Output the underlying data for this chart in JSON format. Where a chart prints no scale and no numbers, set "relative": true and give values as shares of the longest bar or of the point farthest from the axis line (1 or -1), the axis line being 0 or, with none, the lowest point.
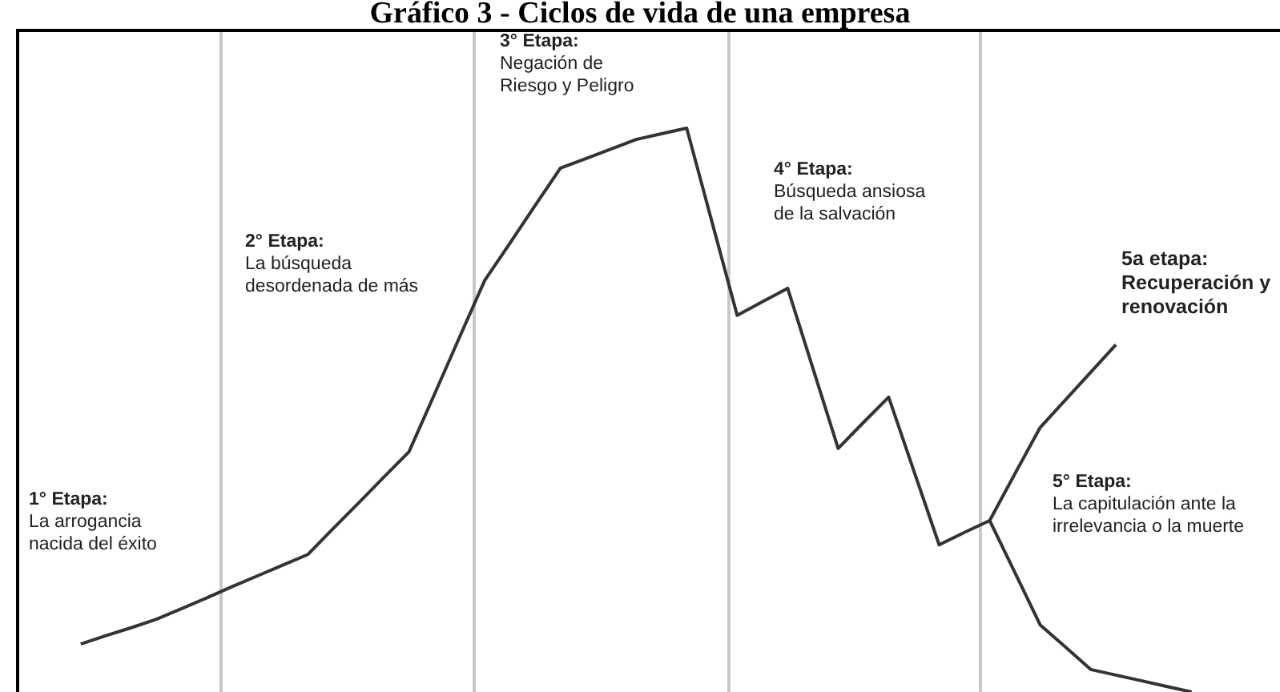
{
  "chart_data": {
    "type": "line",
    "title": "Gráfico 3 - Ciclos de vida de una empresa",
    "relative": true,
    "legend": false,
    "marker": "none",
    "line_style": "solid",
    "categories": [
      null,
      null,
      null,
      null,
      null,
      null,
      null,
      null,
      null,
      null,
      null,
      null,
      null,
      null,
      null,
      null,
      null,
      null,
      null,
      null,
      null,
      null,
      null,
      null,
      null,
      null,
      null,
      null,
      null,
      null,
      null,
      null,
      null,
      null,
      null,
      null,
      null,
      null,
      null,
      null,
      null,
      null,
      null,
      null,
      null,
      null,
      null,
      null,
      null,
      null
    ],
    "series": [
      {
        "color": "#333333",
        "values": [
          null,
          null,
          0.085,
          0.1,
          0.114,
          0.129,
          0.148,
          0.167,
          0.187,
          0.206,
          0.225,
          0.244,
          0.29,
          0.335,
          0.381,
          0.426,
          0.527,
          0.629,
          0.73,
          0.796,
          0.863,
          0.929,
          0.946,
          0.963,
          0.98,
          0.99,
          1,
          0.834,
          0.668,
          0.692,
          0.716,
          0.574,
          0.432,
          0.478,
          0.523,
          0.392,
          0.261,
          0.283,
          0.304,
          0.212,
          0.119,
          0.08,
          0.04,
          0.03,
          0.02,
          0.01,
          0,
          null,
          null,
          null
        ]
      },
      {
        "color": "#333333",
        "values": [
          null,
          null,
          null,
          null,
          null,
          null,
          null,
          null,
          null,
          null,
          null,
          null,
          null,
          null,
          null,
          null,
          null,
          null,
          null,
          null,
          null,
          null,
          null,
          null,
          null,
          null,
          null,
          null,
          null,
          null,
          null,
          null,
          null,
          null,
          null,
          null,
          null,
          null,
          0.304,
          0.387,
          0.469,
          0.518,
          0.567,
          0.616,
          null,
          null,
          null,
          null,
          null,
          null
        ]
      }
    ],
    "annotations": [
      "1° Etapa:\nLa arrogancia\nnacida del éxito",
      "2° Etapa:\nLa búsqueda\ndesordenada de más",
      "3° Etapa:\nNegación de\nRiesgo y Peligro",
      "4° Etapa:\nBúsqueda ansiosa\nde la salvación",
      "5a etapa:\nRecuperación y\nrenovación",
      "5° Etapa:\nLa capitulación ante la\nirrelevancia o la muerte"
    ]
  }
}
